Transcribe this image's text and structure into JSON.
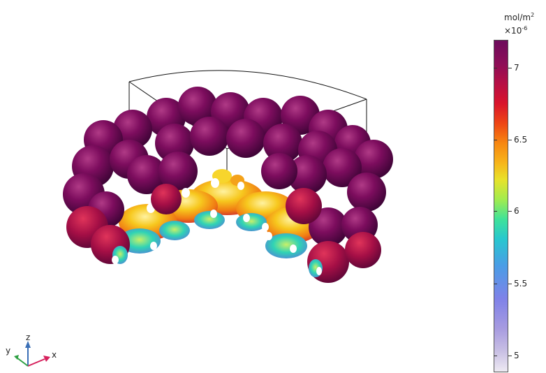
{
  "colorbar": {
    "unit": "mol/m",
    "unit_exp": "2",
    "scale": "×10",
    "scale_exp": "-6",
    "ticks": [
      "7",
      "6.5",
      "6",
      "5.5",
      "5"
    ],
    "gradient_colors": [
      "#eeeaf3",
      "#a79be0",
      "#4a9de6",
      "#27c7cf",
      "#a2ec4e",
      "#e8e22a",
      "#f78711",
      "#d9142c",
      "#6d0c5c"
    ]
  },
  "axes": {
    "x": "x",
    "y": "y",
    "z": "z",
    "x_color": "#d6205c",
    "y_color": "#2ea043",
    "z_color": "#3b6fb6"
  }
}
